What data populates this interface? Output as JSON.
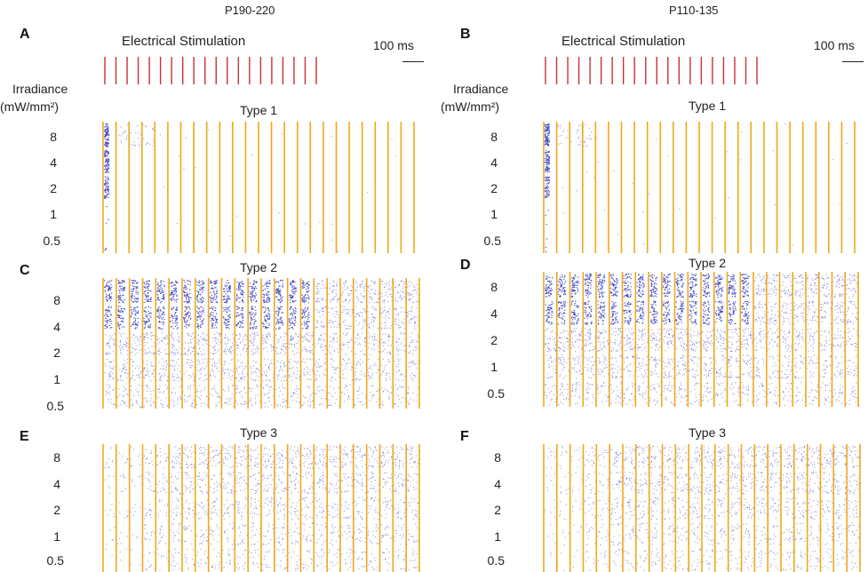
{
  "colors": {
    "stim_bar": "#c8303a",
    "light_pulse": "#f0a818",
    "spike": "#3a43c8",
    "text": "#222222"
  },
  "scale_bar_label": "100 ms",
  "stim_title": "Electrical Stimulation",
  "irradiance_label_line1": "Irradiance",
  "irradiance_label_line2": "(mW/mm²)",
  "irradiance_levels": [
    "8",
    "4",
    "2",
    "1",
    "0.5"
  ],
  "columns": [
    {
      "condition": "P190-220",
      "panels": [
        {
          "letter": "A",
          "type": "Type 1",
          "response": "type1"
        },
        {
          "letter": "C",
          "type": "Type 2",
          "response": "type2"
        },
        {
          "letter": "E",
          "type": "Type 3",
          "response": "type3"
        }
      ]
    },
    {
      "condition": "P110-135",
      "panels": [
        {
          "letter": "B",
          "type": "Type 1",
          "response": "type1"
        },
        {
          "letter": "D",
          "type": "Type 2",
          "response": "type2"
        },
        {
          "letter": "F",
          "type": "Type 3",
          "response": "type3"
        }
      ]
    }
  ]
}
